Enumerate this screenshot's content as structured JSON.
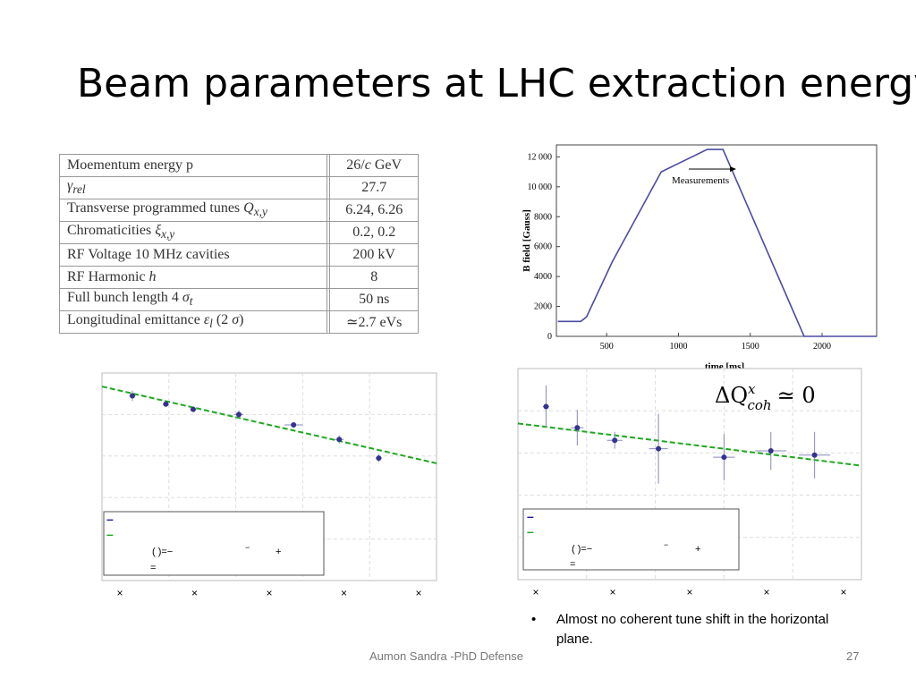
{
  "slide": {
    "title": "Beam parameters at LHC extraction energy",
    "footer": "Aumon Sandra -PhD Defense",
    "page": "27",
    "bullet": "Almost no coherent tune shift  in the horizontal plane."
  },
  "param_table": {
    "rows": [
      {
        "name": "Moementum energy p",
        "value": "26/c GeV"
      },
      {
        "name": "γrel",
        "value": "27.7"
      },
      {
        "name": "Transverse programmed tunes Qx,y",
        "value": "6.24, 6.26"
      },
      {
        "name": "Chromaticities ξx,y",
        "value": "0.2, 0.2"
      },
      {
        "name": "RF Voltage 10 MHz cavities",
        "value": "200 kV"
      },
      {
        "name": "RF Harmonic h",
        "value": "8"
      },
      {
        "name": "Full bunch length 4 σt",
        "value": "50 ns"
      },
      {
        "name": "Longitudinal emittance εl (2 σ)",
        "value": "≃2.7 eVs"
      }
    ]
  },
  "chart_data": [
    {
      "type": "line",
      "title": "",
      "xlabel": "time [ms]",
      "ylabel": "B field [Gauss]",
      "xlim": [
        150,
        2380
      ],
      "ylim": [
        0,
        12800
      ],
      "xticks": [
        500,
        1000,
        1500,
        2000
      ],
      "yticks": [
        0,
        2000,
        4000,
        6000,
        8000,
        10000,
        12000
      ],
      "ytick_labels": [
        "0",
        "2000",
        "4000",
        "6000",
        "8000",
        "10 000",
        "12 000"
      ],
      "annotation": "Measurements",
      "series": [
        {
          "x": [
            160,
            320,
            360,
            540,
            880,
            1200,
            1310,
            1875,
            1895,
            2380
          ],
          "y": [
            1000,
            1000,
            1300,
            5000,
            11000,
            12500,
            12500,
            0,
            0,
            0
          ]
        }
      ]
    },
    {
      "type": "scatter",
      "xlim": [
        0,
        11
      ],
      "ylim": [
        0,
        10
      ],
      "legend_symbols": [
        "–",
        "–"
      ],
      "legend_formula": [
        "(   )=−",
        "−",
        "+",
        "="
      ],
      "xtick_symbols": [
        "×",
        "×",
        "×",
        "×",
        "×"
      ],
      "color_points": "#33338f",
      "color_fit": "#1fa81f",
      "points": [
        {
          "x": 1.0,
          "y": 8.9,
          "ex": 0.1,
          "ey": 0.25
        },
        {
          "x": 2.1,
          "y": 8.5,
          "ex": 0.1,
          "ey": 0.1
        },
        {
          "x": 3.0,
          "y": 8.25,
          "ex": 0.1,
          "ey": 0.1
        },
        {
          "x": 4.5,
          "y": 8.0,
          "ex": 0.15,
          "ey": 0.2
        },
        {
          "x": 6.3,
          "y": 7.5,
          "ex": 0.3,
          "ey": 0.1
        },
        {
          "x": 7.8,
          "y": 6.8,
          "ex": 0.15,
          "ey": 0.2
        },
        {
          "x": 9.1,
          "y": 5.9,
          "ex": 0.1,
          "ey": 0.2
        }
      ],
      "fit": {
        "x": [
          0,
          11
        ],
        "y": [
          9.35,
          5.65
        ]
      }
    },
    {
      "type": "scatter",
      "xlim": [
        0,
        11
      ],
      "ylim": [
        0,
        10
      ],
      "annotation": "ΔQ",
      "annotation_sup": "x",
      "annotation_sub": "coh",
      "annotation_rhs": "≃ 0",
      "legend_symbols": [
        "–",
        "–"
      ],
      "legend_formula": [
        "(   )=−",
        "−",
        "+",
        "="
      ],
      "xtick_symbols": [
        "×",
        "×",
        "×",
        "×",
        "×"
      ],
      "color_points": "#33338f",
      "color_fit": "#1fa81f",
      "points": [
        {
          "x": 0.9,
          "y": 8.2,
          "ex": 0.1,
          "ey": 1.0
        },
        {
          "x": 1.9,
          "y": 7.2,
          "ex": 0.2,
          "ey": 0.85
        },
        {
          "x": 3.1,
          "y": 6.6,
          "ex": 0.25,
          "ey": 0.4
        },
        {
          "x": 4.5,
          "y": 6.2,
          "ex": 0.3,
          "ey": 1.65
        },
        {
          "x": 6.6,
          "y": 5.8,
          "ex": 0.35,
          "ey": 1.1
        },
        {
          "x": 8.1,
          "y": 6.1,
          "ex": 0.5,
          "ey": 0.9
        },
        {
          "x": 9.5,
          "y": 5.9,
          "ex": 0.5,
          "ey": 1.1
        }
      ],
      "fit": {
        "x": [
          0,
          11
        ],
        "y": [
          7.4,
          5.4
        ]
      }
    }
  ]
}
